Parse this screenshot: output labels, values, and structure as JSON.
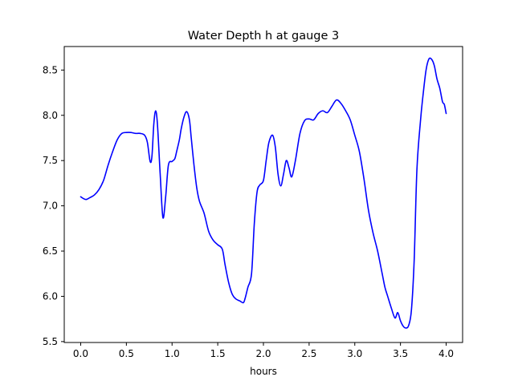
{
  "chart_data": {
    "type": "line",
    "title": "Water Depth h at gauge 3",
    "xlabel": "hours",
    "ylabel": "",
    "xlim": [
      -0.18,
      4.18
    ],
    "ylim": [
      5.49,
      8.76
    ],
    "xticks": [
      "0.0",
      "0.5",
      "1.0",
      "1.5",
      "2.0",
      "2.5",
      "3.0",
      "3.5",
      "4.0"
    ],
    "yticks": [
      "5.5",
      "6.0",
      "6.5",
      "7.0",
      "7.5",
      "8.0",
      "8.5"
    ],
    "grid": false,
    "series": [
      {
        "name": "",
        "color": "#0000ff",
        "x": [
          0.0,
          0.03,
          0.06,
          0.1,
          0.15,
          0.2,
          0.25,
          0.3,
          0.35,
          0.4,
          0.45,
          0.5,
          0.55,
          0.6,
          0.65,
          0.7,
          0.73,
          0.76,
          0.78,
          0.8,
          0.82,
          0.84,
          0.87,
          0.9,
          0.93,
          0.96,
          1.0,
          1.03,
          1.05,
          1.08,
          1.1,
          1.13,
          1.16,
          1.19,
          1.21,
          1.24,
          1.27,
          1.3,
          1.35,
          1.4,
          1.45,
          1.5,
          1.55,
          1.58,
          1.62,
          1.66,
          1.7,
          1.74,
          1.78,
          1.8,
          1.83,
          1.87,
          1.9,
          1.93,
          1.96,
          2.0,
          2.03,
          2.06,
          2.1,
          2.13,
          2.16,
          2.19,
          2.22,
          2.25,
          2.28,
          2.31,
          2.35,
          2.4,
          2.45,
          2.5,
          2.55,
          2.6,
          2.65,
          2.7,
          2.75,
          2.8,
          2.85,
          2.9,
          2.95,
          3.0,
          3.05,
          3.1,
          3.15,
          3.2,
          3.25,
          3.3,
          3.33,
          3.36,
          3.4,
          3.44,
          3.47,
          3.5,
          3.53,
          3.56,
          3.59,
          3.62,
          3.65,
          3.68,
          3.72,
          3.75,
          3.78,
          3.81,
          3.84,
          3.87,
          3.9,
          3.93,
          3.96,
          3.98,
          4.0
        ],
        "y": [
          7.1,
          7.08,
          7.07,
          7.09,
          7.12,
          7.18,
          7.28,
          7.45,
          7.6,
          7.73,
          7.8,
          7.81,
          7.81,
          7.8,
          7.8,
          7.78,
          7.7,
          7.49,
          7.55,
          7.9,
          8.05,
          7.9,
          7.35,
          6.87,
          7.1,
          7.45,
          7.49,
          7.52,
          7.6,
          7.73,
          7.85,
          7.98,
          8.04,
          7.95,
          7.75,
          7.45,
          7.2,
          7.05,
          6.92,
          6.72,
          6.62,
          6.57,
          6.52,
          6.35,
          6.15,
          6.02,
          5.97,
          5.95,
          5.93,
          5.98,
          6.1,
          6.25,
          6.8,
          7.15,
          7.23,
          7.28,
          7.5,
          7.7,
          7.78,
          7.65,
          7.35,
          7.22,
          7.35,
          7.5,
          7.42,
          7.32,
          7.5,
          7.8,
          7.94,
          7.96,
          7.95,
          8.02,
          8.05,
          8.03,
          8.1,
          8.17,
          8.13,
          8.05,
          7.95,
          7.78,
          7.6,
          7.3,
          6.95,
          6.7,
          6.5,
          6.25,
          6.1,
          6.0,
          5.87,
          5.76,
          5.82,
          5.73,
          5.67,
          5.65,
          5.68,
          5.85,
          6.4,
          7.4,
          7.95,
          8.25,
          8.5,
          8.62,
          8.62,
          8.55,
          8.4,
          8.3,
          8.15,
          8.12,
          8.02
        ]
      }
    ]
  }
}
